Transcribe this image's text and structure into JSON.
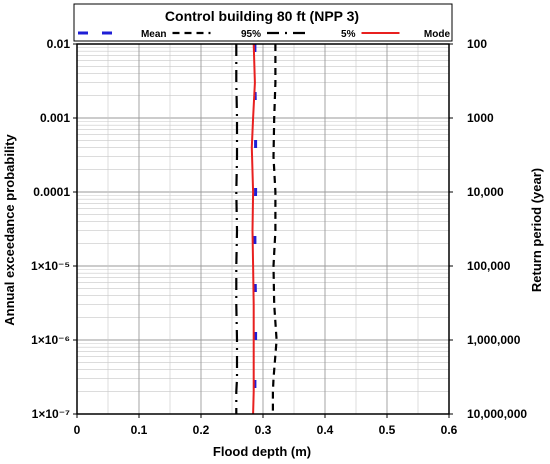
{
  "chart_data": {
    "type": "line",
    "title": "Control building 80 ft (NPP 3)",
    "xlabel": "Flood depth (m)",
    "ylabel": "Annual exceedance probability",
    "ylabel_right": "Return period (year)",
    "xlim": [
      0,
      0.6
    ],
    "ylim": [
      1e-07,
      0.01
    ],
    "yscale": "log",
    "x_ticks": [
      0,
      0.1,
      0.2,
      0.3,
      0.4,
      0.5,
      0.6
    ],
    "x_tick_labels": [
      "0",
      "0.1",
      "0.2",
      "0.3",
      "0.4",
      "0.5",
      "0.6"
    ],
    "y_ticks": [
      0.01,
      0.001,
      0.0001,
      1e-05,
      1e-06,
      1e-07
    ],
    "y_tick_labels": [
      "0.01",
      "0.001",
      "0.0001",
      "1×10⁻⁵",
      "1×10⁻⁶",
      "1×10⁻⁷"
    ],
    "y_right_tick_labels": [
      "100",
      "1000",
      "10,000",
      "100,000",
      "1,000,000",
      "10,000,000"
    ],
    "grid": true,
    "legend_position": "top",
    "series": [
      {
        "name": "Mean",
        "color": "#1f1fd6",
        "style": "dash",
        "x": [
          0.287,
          0.287,
          0.288,
          0.288,
          0.288,
          0.287,
          0.287,
          0.288,
          0.288,
          0.287,
          0.287
        ],
        "y": [
          0.01,
          0.003,
          0.001,
          0.0003,
          0.0001,
          3e-05,
          1e-05,
          3e-06,
          1e-06,
          3e-07,
          1e-07
        ]
      },
      {
        "name": "95%",
        "color": "#000000",
        "style": "short-dash",
        "x": [
          0.32,
          0.32,
          0.318,
          0.317,
          0.32,
          0.32,
          0.317,
          0.318,
          0.322,
          0.317,
          0.316,
          0.316
        ],
        "y": [
          0.01,
          0.003,
          0.001,
          0.0003,
          0.0001,
          3e-05,
          1e-05,
          3e-06,
          1e-06,
          3e-07,
          2e-07,
          1e-07
        ]
      },
      {
        "name": "5%",
        "color": "#000000",
        "style": "dash-dot",
        "x": [
          0.257,
          0.257,
          0.258,
          0.258,
          0.257,
          0.258,
          0.257,
          0.257,
          0.258,
          0.258,
          0.257,
          0.257
        ],
        "y": [
          0.01,
          0.003,
          0.001,
          0.0003,
          0.0001,
          3e-05,
          1e-05,
          3e-06,
          1e-06,
          3e-07,
          2e-07,
          1e-07
        ]
      },
      {
        "name": "Mode",
        "color": "#e8201f",
        "style": "solid",
        "x": [
          0.285,
          0.287,
          0.284,
          0.282,
          0.284,
          0.283,
          0.284,
          0.285,
          0.285,
          0.285,
          0.285,
          0.284
        ],
        "y": [
          0.01,
          0.003,
          0.001,
          0.0004,
          0.0001,
          3e-05,
          1e-05,
          3e-06,
          1e-06,
          3e-07,
          2e-07,
          1e-07
        ]
      }
    ]
  }
}
